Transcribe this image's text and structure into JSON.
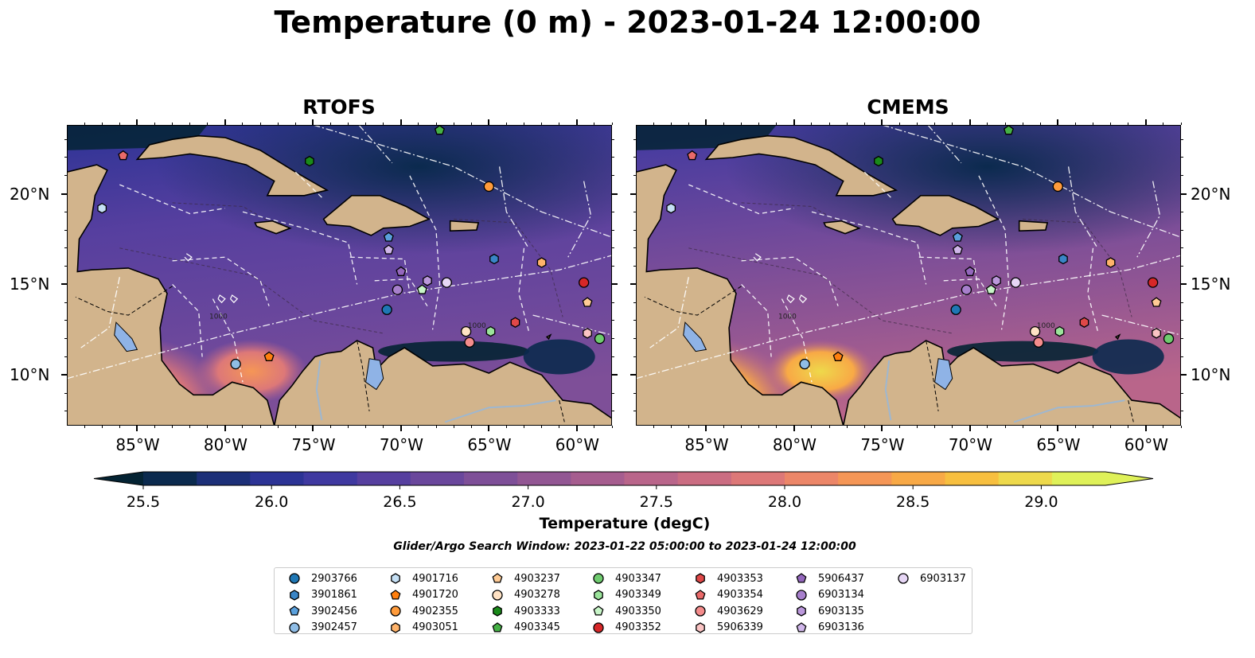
{
  "title": "Temperature (0 m) - 2023-01-24 12:00:00",
  "panels": [
    {
      "id": "rtofs",
      "title": "RTOFS"
    },
    {
      "id": "cmems",
      "title": "CMEMS"
    }
  ],
  "map": {
    "lon_range": [
      -89,
      -58
    ],
    "lat_range": [
      7.2,
      23.8
    ],
    "lon_ticks": [
      "85°W",
      "80°W",
      "75°W",
      "70°W",
      "65°W",
      "60°W"
    ],
    "lat_ticks": [
      "20°N",
      "15°N",
      "10°N"
    ],
    "land_color": "#d2b48c",
    "contour_label": "1000"
  },
  "colorbar": {
    "label": "Temperature (degC)",
    "ticks": [
      "25.5",
      "26.0",
      "26.5",
      "27.0",
      "27.5",
      "28.0",
      "28.5",
      "29.0"
    ],
    "range": [
      25.5,
      29.25
    ],
    "colors": [
      "#042333",
      "#0b2a4e",
      "#1c2f78",
      "#2c3395",
      "#3f39a0",
      "#563f9f",
      "#6a479c",
      "#7e4f98",
      "#925693",
      "#a65d8f",
      "#b9658a",
      "#cb6d82",
      "#dd7878",
      "#ec8668",
      "#f59656",
      "#f8a946",
      "#f7bf3f",
      "#eed94b",
      "#dff159"
    ]
  },
  "search_window": "Glider/Argo Search Window: 2023-01-22 05:00:00 to 2023-01-24 12:00:00",
  "legend": [
    {
      "label": "2903766",
      "marker": "circle",
      "color": "#1f77b4"
    },
    {
      "label": "3901861",
      "marker": "hexagon",
      "color": "#3a85c6"
    },
    {
      "label": "3902456",
      "marker": "pentagon",
      "color": "#5aa0dc"
    },
    {
      "label": "3902457",
      "marker": "circle",
      "color": "#8fbde6"
    },
    {
      "label": "4901716",
      "marker": "hexagon",
      "color": "#c5e0f5"
    },
    {
      "label": "4901720",
      "marker": "pentagon",
      "color": "#ff7f0e"
    },
    {
      "label": "4902355",
      "marker": "circle",
      "color": "#ff9b3b"
    },
    {
      "label": "4903051",
      "marker": "hexagon",
      "color": "#ffb36a"
    },
    {
      "label": "4903237",
      "marker": "pentagon",
      "color": "#ffcb95"
    },
    {
      "label": "4903278",
      "marker": "circle",
      "color": "#ffe2c4"
    },
    {
      "label": "4903333",
      "marker": "hexagon",
      "color": "#1a8a1a"
    },
    {
      "label": "4903345",
      "marker": "pentagon",
      "color": "#45b145"
    },
    {
      "label": "4903347",
      "marker": "circle",
      "color": "#6fcb6f"
    },
    {
      "label": "4903349",
      "marker": "hexagon",
      "color": "#9be39b"
    },
    {
      "label": "4903350",
      "marker": "pentagon",
      "color": "#c8f5c8"
    },
    {
      "label": "4903352",
      "marker": "circle",
      "color": "#d62728"
    },
    {
      "label": "4903353",
      "marker": "hexagon",
      "color": "#e04848"
    },
    {
      "label": "4903354",
      "marker": "pentagon",
      "color": "#ea6a6a"
    },
    {
      "label": "4903629",
      "marker": "circle",
      "color": "#f48c8c"
    },
    {
      "label": "5906339",
      "marker": "hexagon",
      "color": "#fbc4c4"
    },
    {
      "label": "5906437",
      "marker": "pentagon",
      "color": "#9467bd"
    },
    {
      "label": "6903134",
      "marker": "circle",
      "color": "#a77fcc"
    },
    {
      "label": "6903135",
      "marker": "hexagon",
      "color": "#bb98db"
    },
    {
      "label": "6903136",
      "marker": "pentagon",
      "color": "#d0b6ea"
    },
    {
      "label": "6903137",
      "marker": "circle",
      "color": "#e6d6f5"
    }
  ],
  "floats": [
    {
      "id": "2903766",
      "lon": -70.8,
      "lat": 13.6
    },
    {
      "id": "3901861",
      "lon": -64.7,
      "lat": 16.4
    },
    {
      "id": "3902456",
      "lon": -70.7,
      "lat": 17.6
    },
    {
      "id": "3902457",
      "lon": -79.4,
      "lat": 10.6
    },
    {
      "id": "4901716",
      "lon": -87.0,
      "lat": 19.2
    },
    {
      "id": "4901720",
      "lon": -77.5,
      "lat": 11.0
    },
    {
      "id": "4902355",
      "lon": -65.0,
      "lat": 20.4
    },
    {
      "id": "4903051",
      "lon": -62.0,
      "lat": 16.2
    },
    {
      "id": "4903237",
      "lon": -59.4,
      "lat": 14.0
    },
    {
      "id": "4903278",
      "lon": -66.3,
      "lat": 12.4
    },
    {
      "id": "4903333",
      "lon": -75.2,
      "lat": 21.8
    },
    {
      "id": "4903345",
      "lon": -67.8,
      "lat": 23.5
    },
    {
      "id": "4903347",
      "lon": -58.7,
      "lat": 12.0
    },
    {
      "id": "4903349",
      "lon": -64.9,
      "lat": 12.4
    },
    {
      "id": "4903350",
      "lon": -68.8,
      "lat": 14.7
    },
    {
      "id": "4903352",
      "lon": -59.6,
      "lat": 15.1
    },
    {
      "id": "4903353",
      "lon": -63.5,
      "lat": 12.9
    },
    {
      "id": "4903354",
      "lon": -85.8,
      "lat": 22.1
    },
    {
      "id": "4903629",
      "lon": -66.1,
      "lat": 11.8
    },
    {
      "id": "5906339",
      "lon": -59.4,
      "lat": 12.3
    },
    {
      "id": "5906437",
      "lon": -70.0,
      "lat": 15.7
    },
    {
      "id": "6903134",
      "lon": -70.2,
      "lat": 14.7
    },
    {
      "id": "6903135",
      "lon": -68.5,
      "lat": 15.2
    },
    {
      "id": "6903136",
      "lon": -70.7,
      "lat": 16.9
    },
    {
      "id": "6903137",
      "lon": -67.4,
      "lat": 15.1
    }
  ]
}
